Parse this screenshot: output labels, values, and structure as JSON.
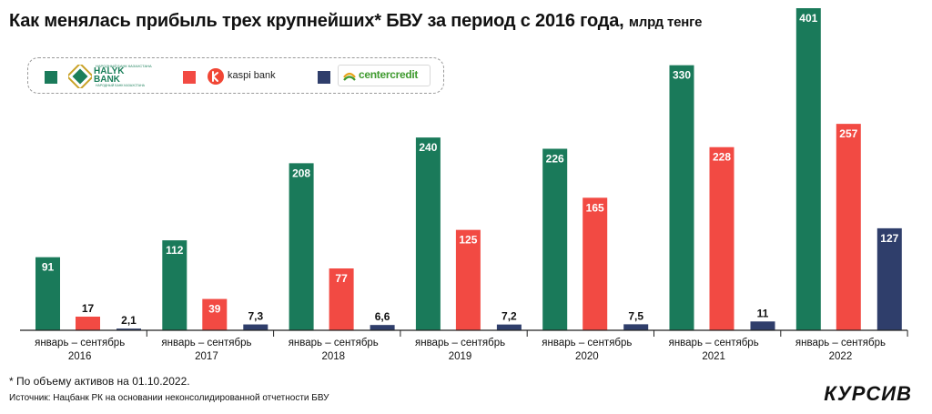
{
  "title": {
    "main": "Как менялась прибыль трех крупнейших* БВУ за период с 2016 года,",
    "unit": "млрд тенге"
  },
  "legend": {
    "halyk": {
      "top_text": "НАРОДНЫЙ БАНК КАЗАХСТАНА",
      "name_line1": "HALYK",
      "name_line2": "BANK",
      "sub_text": "НАРОДНЫЙ БАНК КАЗАХСТАНА"
    },
    "kaspi": {
      "name": "kaspi bank"
    },
    "centercredit": {
      "name": "centercredit"
    }
  },
  "colors": {
    "halyk": "#1a7a5a",
    "kaspi": "#f24a43",
    "centercredit": "#2f3e6b",
    "axis": "#222222",
    "label_light": "#ffffff",
    "label_dark": "#111111"
  },
  "chart_data": {
    "type": "bar",
    "categories": [
      [
        "январь – сентябрь",
        "2016"
      ],
      [
        "январь – сентябрь",
        "2017"
      ],
      [
        "январь – сентябрь",
        "2018"
      ],
      [
        "январь – сентябрь",
        "2019"
      ],
      [
        "январь – сентябрь",
        "2020"
      ],
      [
        "январь – сентябрь",
        "2021"
      ],
      [
        "январь – сентябрь",
        "2022"
      ]
    ],
    "series": [
      {
        "values": [
          91,
          112,
          208,
          240,
          226,
          330,
          401
        ],
        "labels": [
          "91",
          "112",
          "208",
          "240",
          "226",
          "330",
          "401"
        ]
      },
      {
        "values": [
          17,
          39,
          77,
          125,
          165,
          228,
          257
        ],
        "labels": [
          "17",
          "39",
          "77",
          "125",
          "165",
          "228",
          "257"
        ]
      },
      {
        "values": [
          2.1,
          7.3,
          6.6,
          7.2,
          7.5,
          11,
          127
        ],
        "labels": [
          "2,1",
          "7,3",
          "6,6",
          "7,2",
          "7,5",
          "11",
          "127"
        ]
      }
    ],
    "ylim": [
      0,
      401
    ],
    "grid": false
  },
  "footer": {
    "footnote": "* По объему активов на 01.10.2022.",
    "source": "Источник: Нацбанк РК на основании неконсолидированной отчетности БВУ",
    "logo": "КУРСИВ"
  }
}
